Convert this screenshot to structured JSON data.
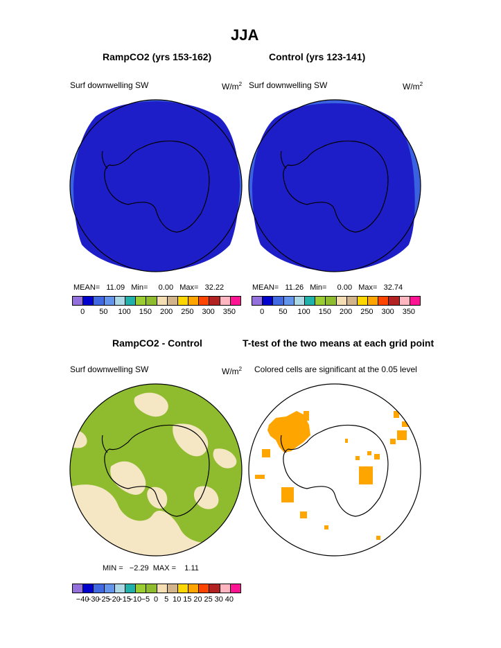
{
  "title": "JJA",
  "panels": {
    "ramp": {
      "title": "RampCO2 (yrs 153-162)",
      "variable": "Surf downwelling SW",
      "units": "W/m",
      "units_exp": "2",
      "stats": "MEAN=   11.09   Min=     0.00   Max=   32.22"
    },
    "control": {
      "title": "Control (yrs 123-141)",
      "variable": "Surf downwelling SW",
      "units": "W/m",
      "units_exp": "2",
      "stats": "MEAN=   11.26   Min=     0.00   Max=   32.74"
    },
    "diff": {
      "title": "RampCO2 - Control",
      "variable": "Surf downwelling SW",
      "units": "W/m",
      "units_exp": "2",
      "stats": "MIN =   −2.29  MAX =    1.11"
    },
    "ttest": {
      "title": "T-test of the two means at each grid point",
      "caption": "Colored cells are significant at the 0.05 level"
    }
  },
  "colors": {
    "abs_scale": [
      "#9370db",
      "#0000cd",
      "#4169e1",
      "#6495ed",
      "#add8e6",
      "#20b2aa",
      "#9acd32",
      "#8fbc2f",
      "#f5deb3",
      "#d2b48c",
      "#ffd700",
      "#ffa500",
      "#ff4500",
      "#b22222",
      "#ffb6c1",
      "#ff1493"
    ],
    "abs_labels": [
      "0",
      "50",
      "100",
      "150",
      "200",
      "250",
      "300",
      "350"
    ],
    "diff_scale": [
      "#9370db",
      "#0000cd",
      "#4169e1",
      "#6495ed",
      "#add8e6",
      "#20b2aa",
      "#9acd32",
      "#8fbc2f",
      "#f5deb3",
      "#d2b48c",
      "#ffd700",
      "#ffa500",
      "#ff4500",
      "#b22222",
      "#ffb6c1",
      "#ff1493"
    ],
    "diff_labels": [
      "−40",
      "−30",
      "−25",
      "−20",
      "−15",
      "−10",
      "−5",
      "0",
      "5",
      "10",
      "15",
      "20",
      "25",
      "30",
      "40"
    ],
    "map_fill": "#1e1ec8",
    "map_edge": "#3a62e0",
    "diff_green": "#8fbc2f",
    "diff_tan": "#f5e6c4",
    "sig_orange": "#ffa500"
  }
}
